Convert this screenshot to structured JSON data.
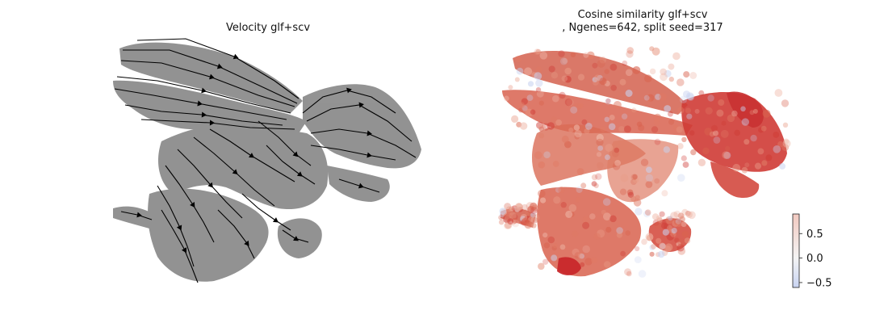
{
  "panels": {
    "left_title": "Velocity glf+scv",
    "right_title_line1": "Cosine similarity glf+scv",
    "right_title_line2": ", Ngenes=642, split seed=317"
  },
  "colors": {
    "scatter_gray": "#808080",
    "stream_black": "#000000",
    "cmap_high": "#cc2a2a",
    "cmap_mid": "#f4f4f4",
    "cmap_low": "#c9d4f2"
  },
  "chart_data": [
    {
      "type": "scatter",
      "subtype": "embedding-streamplot",
      "title": "Velocity glf+scv",
      "xlabel": "",
      "ylabel": "",
      "axes_visible": false,
      "grid": false,
      "legend": "none"
    },
    {
      "type": "scatter",
      "subtype": "embedding-colored",
      "title": "Cosine similarity glf+scv\n, Ngenes=642, split seed=317",
      "xlabel": "",
      "ylabel": "",
      "axes_visible": false,
      "grid": false,
      "colorbar": {
        "position": "bottom-right",
        "range": [
          -0.6,
          0.9
        ],
        "ticks": [
          0.5,
          0.0,
          -0.5
        ],
        "tick_labels": [
          "0.5",
          "0.0",
          "−0.5"
        ],
        "cmap": "coolwarm"
      }
    }
  ]
}
